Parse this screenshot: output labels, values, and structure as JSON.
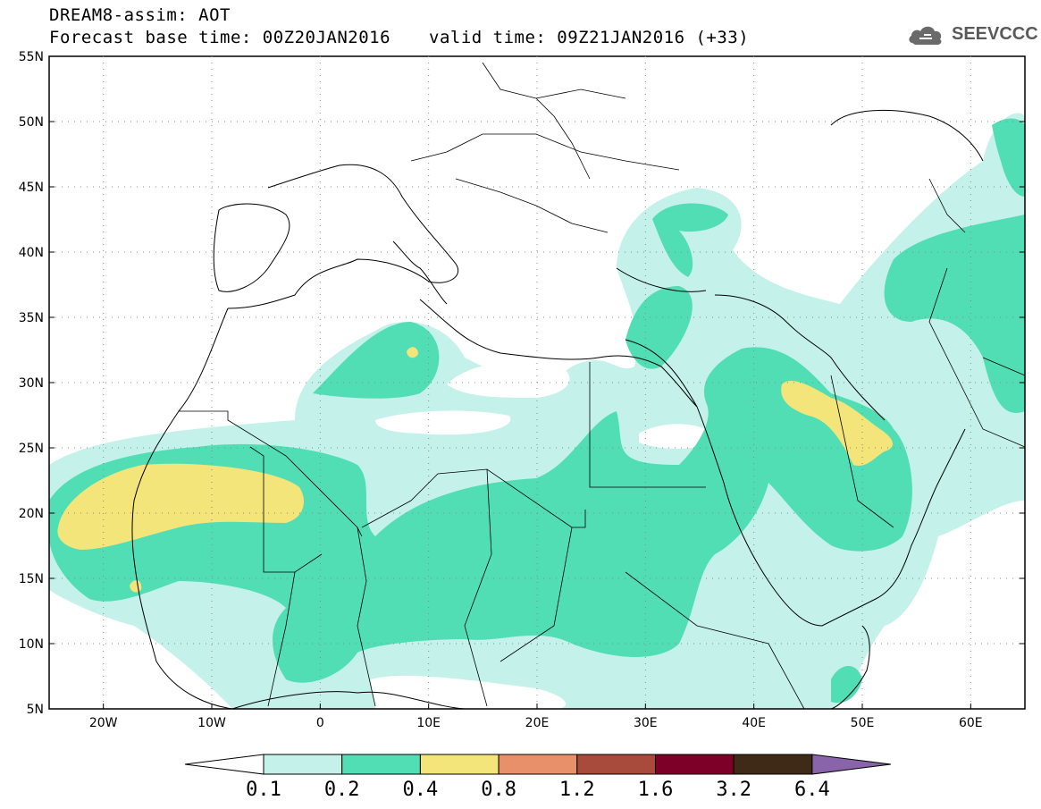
{
  "header": {
    "title_line1": "DREAM8-assim: AOT",
    "title_line2": "Forecast base time: 00Z20JAN2016",
    "valid_time": "valid time: 09Z21JAN2016 (+33)",
    "logo_text": "SEEVCCC",
    "logo_icon": "cloud-logo-icon"
  },
  "map": {
    "lon_range": [
      -25,
      65
    ],
    "lat_range": [
      5,
      55
    ],
    "lat_ticks": [
      "55N",
      "50N",
      "45N",
      "40N",
      "35N",
      "30N",
      "25N",
      "20N",
      "15N",
      "10N",
      "5N"
    ],
    "lon_ticks": [
      "20W",
      "10W",
      "0",
      "10E",
      "20E",
      "30E",
      "40E",
      "50E",
      "60E"
    ],
    "grid": "dotted"
  },
  "colorbar": {
    "labels": [
      "0.1",
      "0.2",
      "0.4",
      "0.8",
      "1.2",
      "1.6",
      "3.2",
      "6.4"
    ],
    "colors": [
      "#ffffff",
      "#c4f2ea",
      "#52deb4",
      "#f3e579",
      "#e8906a",
      "#a84a3c",
      "#7d0028",
      "#3e2a16",
      "#8a64aa"
    ]
  }
}
